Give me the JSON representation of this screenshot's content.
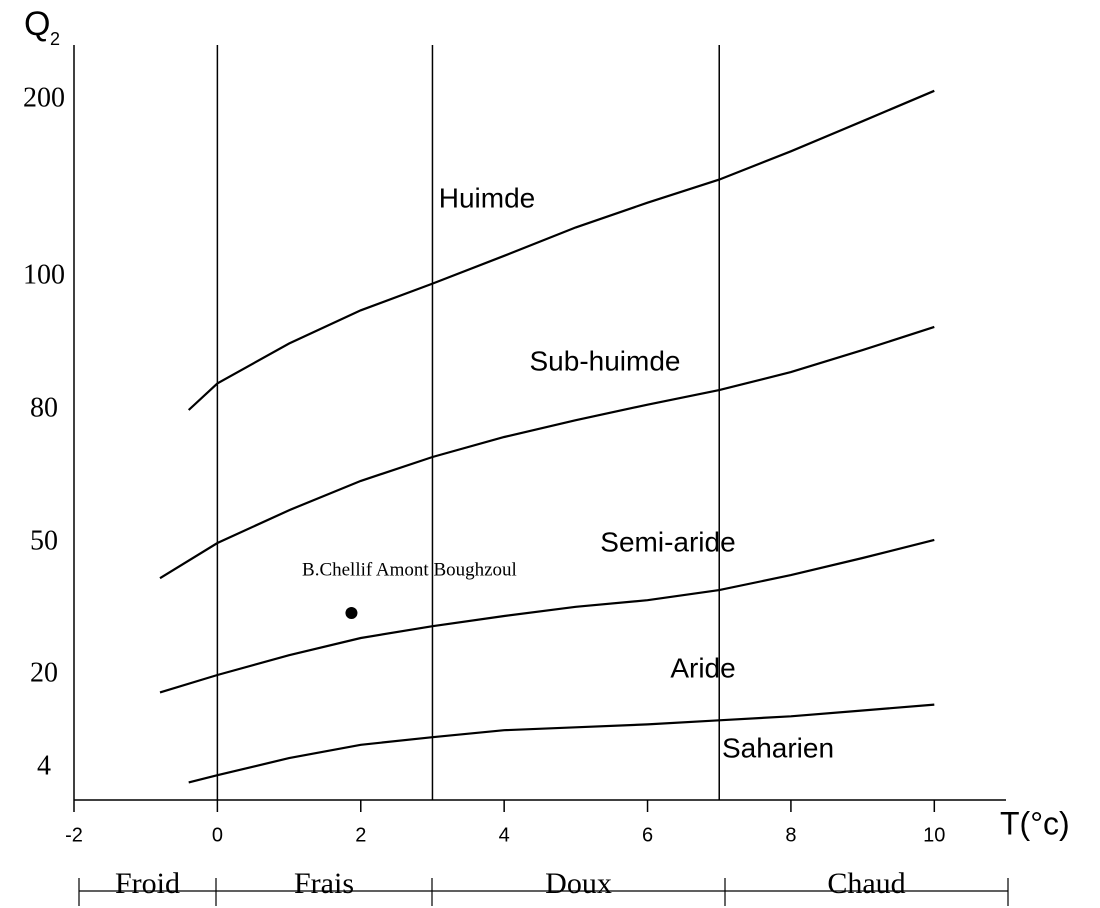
{
  "chart_data": {
    "type": "line",
    "y_label": "Q",
    "y_label_subscript": "2",
    "x_label": "T(°c)",
    "xlim": [
      -2,
      11
    ],
    "xticks": [
      -2,
      0,
      2,
      4,
      6,
      8,
      10
    ],
    "ylim": [
      0,
      230
    ],
    "yticks": [
      4,
      20,
      50,
      80,
      100,
      200
    ],
    "vlines": [
      0,
      3,
      7
    ],
    "color": "#000000",
    "curves": [
      {
        "x": [
          -0.4,
          0,
          1,
          2,
          3,
          4,
          5,
          6,
          7,
          8,
          9,
          10
        ],
        "values": [
          80,
          84,
          90,
          95,
          99,
          112,
          128,
          142,
          155,
          171,
          188,
          205
        ]
      },
      {
        "x": [
          -0.8,
          0,
          1,
          2,
          3,
          4,
          5,
          6,
          7,
          8,
          9,
          10
        ],
        "values": [
          42,
          50,
          57.4,
          64,
          69.4,
          73.9,
          77.7,
          80.8,
          83,
          85.7,
          89,
          92.5
        ]
      },
      {
        "x": [
          -0.8,
          0,
          1,
          2,
          3,
          4,
          5,
          6,
          7,
          8,
          9,
          10
        ],
        "values": [
          17,
          20,
          24.5,
          28.4,
          31.1,
          33.4,
          35.5,
          37,
          39.3,
          42.7,
          46.6,
          50.7
        ]
      },
      {
        "x": [
          -0.4,
          0,
          1,
          2,
          3,
          4,
          5,
          6,
          7,
          8,
          9,
          10
        ],
        "values": [
          2.2,
          3.1,
          5.7,
          8,
          9.3,
          10.5,
          11,
          11.5,
          12.2,
          12.9,
          13.9,
          14.9
        ]
      }
    ],
    "region_labels": [
      "Huimde",
      "Sub-huimde",
      "Semi-aride",
      "Aride",
      "Saharien"
    ],
    "points": [
      {
        "x": 1.87,
        "y": 34.1,
        "label": "B.Chellif Amont Boughzoul"
      }
    ],
    "zones": [
      "Froid",
      "Frais",
      "Doux",
      "Chaud"
    ]
  }
}
